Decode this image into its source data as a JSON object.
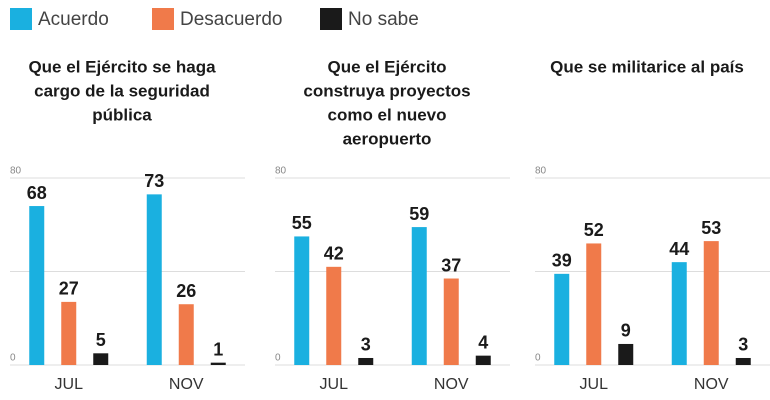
{
  "legend": [
    {
      "name": "Acuerdo",
      "color": "#1ab0e0"
    },
    {
      "name": "Desacuerdo",
      "color": "#f07a4a"
    },
    {
      "name": "No sabe",
      "color": "#1a1a1a"
    }
  ],
  "chart_data": [
    {
      "type": "bar",
      "title": [
        "Que el Ejército se haga",
        "cargo de la seguridad",
        "pública"
      ],
      "categories": [
        "JUL",
        "NOV"
      ],
      "series": [
        {
          "values": [
            68,
            73
          ]
        },
        {
          "values": [
            27,
            26
          ]
        },
        {
          "values": [
            5,
            1
          ]
        }
      ],
      "ylim": [
        0,
        80
      ],
      "yticks": [
        0,
        80
      ],
      "ygrid": [
        0,
        40,
        80
      ]
    },
    {
      "type": "bar",
      "title": [
        "Que el Ejército",
        "construya proyectos",
        "como el nuevo",
        "aeropuerto"
      ],
      "categories": [
        "JUL",
        "NOV"
      ],
      "series": [
        {
          "values": [
            55,
            59
          ]
        },
        {
          "values": [
            42,
            37
          ]
        },
        {
          "values": [
            3,
            4
          ]
        }
      ],
      "ylim": [
        0,
        80
      ],
      "yticks": [
        0,
        80
      ],
      "ygrid": [
        0,
        40,
        80
      ]
    },
    {
      "type": "bar",
      "title": [
        "Que se militarice al país"
      ],
      "categories": [
        "JUL",
        "NOV"
      ],
      "series": [
        {
          "values": [
            39,
            44
          ]
        },
        {
          "values": [
            52,
            53
          ]
        },
        {
          "values": [
            9,
            3
          ]
        }
      ],
      "ylim": [
        0,
        80
      ],
      "yticks": [
        0,
        80
      ],
      "ygrid": [
        0,
        40,
        80
      ]
    }
  ]
}
